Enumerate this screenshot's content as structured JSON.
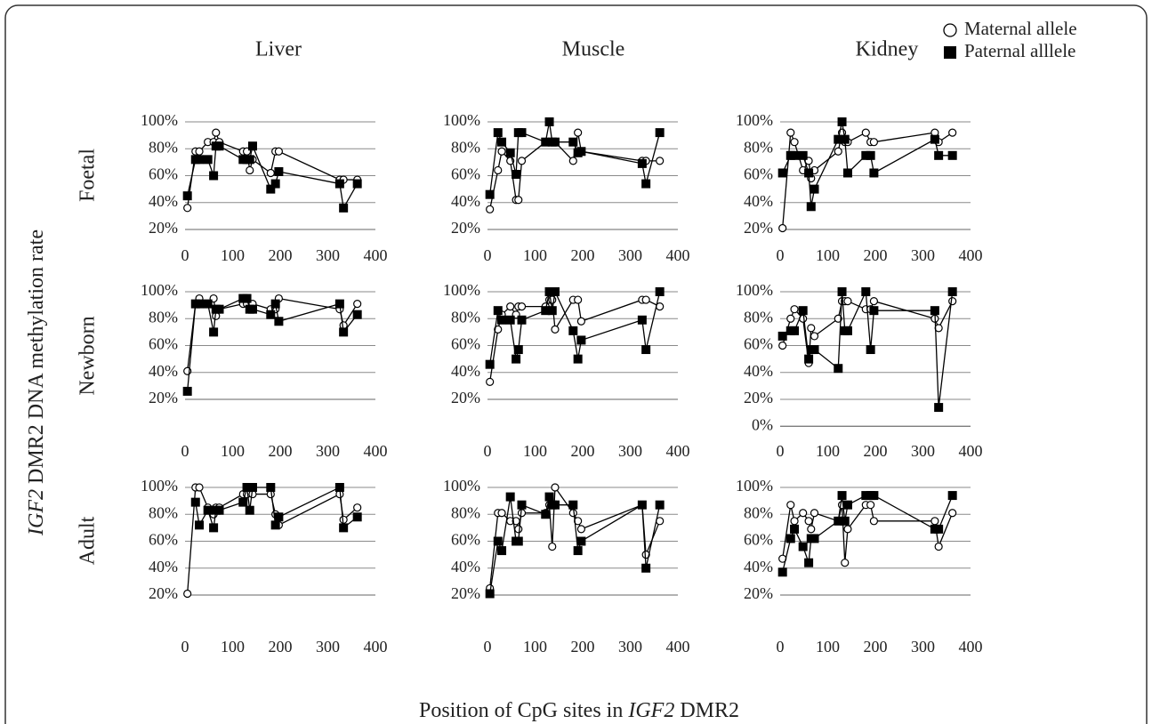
{
  "figure": {
    "column_titles": [
      "Liver",
      "Muscle",
      "Kidney"
    ],
    "row_labels": [
      "Foetal",
      "Newborn",
      "Adult"
    ],
    "y_label": [
      "IGF2",
      " DMR2 DNA methylation rate"
    ],
    "x_label": [
      "Position of CpG sites in ",
      "IGF2",
      " DMR2"
    ]
  },
  "chart_data": [
    {
      "type": "line",
      "x": [
        5,
        22,
        30,
        48,
        60,
        65,
        72,
        122,
        130,
        136,
        142,
        180,
        190,
        197,
        325,
        333,
        362
      ],
      "xlim": [
        0,
        400
      ],
      "xticks": [
        0,
        100,
        200,
        300,
        400
      ],
      "ylim": [
        20,
        100
      ],
      "yticks": [
        {
          "value": 20,
          "label": "20%"
        },
        {
          "value": 40,
          "label": "40%"
        },
        {
          "value": 60,
          "label": "60%"
        },
        {
          "value": 80,
          "label": "80%"
        },
        {
          "value": 100,
          "label": "100%"
        }
      ],
      "grid": true,
      "series": [
        {
          "name": "Maternal allele",
          "color": "#000000",
          "marker": "circle",
          "values": [
            36,
            78,
            78,
            85,
            85,
            92,
            85,
            78,
            78,
            64,
            72,
            62,
            78,
            78,
            57,
            57,
            57
          ]
        },
        {
          "name": "Paternal alllele",
          "color": "#000000",
          "marker": "square",
          "values": [
            45,
            72,
            72,
            72,
            60,
            82,
            82,
            72,
            72,
            72,
            82,
            50,
            54,
            63,
            54,
            36,
            54
          ]
        }
      ]
    },
    {
      "type": "line",
      "x": [
        5,
        22,
        30,
        48,
        60,
        65,
        72,
        122,
        130,
        136,
        142,
        180,
        190,
        197,
        325,
        333,
        362
      ],
      "xlim": [
        0,
        400
      ],
      "xticks": [
        0,
        100,
        200,
        300,
        400
      ],
      "ylim": [
        20,
        100
      ],
      "yticks": [
        {
          "value": 20,
          "label": "20%"
        },
        {
          "value": 40,
          "label": "40%"
        },
        {
          "value": 60,
          "label": "60%"
        },
        {
          "value": 80,
          "label": "80%"
        },
        {
          "value": 100,
          "label": "100%"
        }
      ],
      "grid": true,
      "series": [
        {
          "name": "Maternal allele",
          "color": "#000000",
          "marker": "circle",
          "values": [
            35,
            64,
            78,
            71,
            42,
            42,
            71,
            85,
            85,
            85,
            85,
            71,
            92,
            78,
            71,
            71,
            71
          ]
        },
        {
          "name": "Paternal alllele",
          "color": "#000000",
          "marker": "square",
          "values": [
            46,
            92,
            85,
            77,
            61,
            92,
            92,
            85,
            100,
            85,
            85,
            85,
            77,
            78,
            69,
            54,
            92
          ]
        }
      ]
    },
    {
      "type": "line",
      "x": [
        5,
        22,
        30,
        48,
        60,
        65,
        72,
        122,
        130,
        136,
        142,
        180,
        190,
        197,
        325,
        333,
        362
      ],
      "xlim": [
        0,
        400
      ],
      "xticks": [
        0,
        100,
        200,
        300,
        400
      ],
      "ylim": [
        20,
        100
      ],
      "yticks": [
        {
          "value": 20,
          "label": "20%"
        },
        {
          "value": 40,
          "label": "40%"
        },
        {
          "value": 60,
          "label": "60%"
        },
        {
          "value": 80,
          "label": "80%"
        },
        {
          "value": 100,
          "label": "100%"
        }
      ],
      "grid": true,
      "series": [
        {
          "name": "Maternal allele",
          "color": "#000000",
          "marker": "circle",
          "values": [
            21,
            92,
            85,
            64,
            71,
            58,
            64,
            78,
            92,
            85,
            85,
            92,
            85,
            85,
            92,
            85,
            92
          ]
        },
        {
          "name": "Paternal alllele",
          "color": "#000000",
          "marker": "square",
          "values": [
            62,
            75,
            75,
            75,
            62,
            37,
            50,
            87,
            100,
            87,
            62,
            75,
            75,
            62,
            87,
            75,
            75
          ]
        }
      ]
    },
    {
      "type": "line",
      "x": [
        5,
        22,
        30,
        48,
        60,
        65,
        72,
        122,
        130,
        136,
        142,
        180,
        190,
        197,
        325,
        333,
        362
      ],
      "xlim": [
        0,
        400
      ],
      "xticks": [
        0,
        100,
        200,
        300,
        400
      ],
      "ylim": [
        20,
        100
      ],
      "yticks": [
        {
          "value": 20,
          "label": "20%"
        },
        {
          "value": 40,
          "label": "40%"
        },
        {
          "value": 60,
          "label": "60%"
        },
        {
          "value": 80,
          "label": "80%"
        },
        {
          "value": 100,
          "label": "100%"
        }
      ],
      "grid": true,
      "series": [
        {
          "name": "Maternal allele",
          "color": "#000000",
          "marker": "circle",
          "values": [
            41,
            91,
            95,
            91,
            95,
            82,
            87,
            91,
            91,
            87,
            91,
            87,
            87,
            95,
            87,
            75,
            91
          ]
        },
        {
          "name": "Paternal alllele",
          "color": "#000000",
          "marker": "square",
          "values": [
            26,
            91,
            91,
            91,
            70,
            87,
            87,
            95,
            95,
            87,
            87,
            83,
            91,
            78,
            91,
            70,
            83
          ]
        }
      ]
    },
    {
      "type": "line",
      "x": [
        5,
        22,
        30,
        48,
        60,
        65,
        72,
        122,
        130,
        136,
        142,
        180,
        190,
        197,
        325,
        333,
        362
      ],
      "xlim": [
        0,
        400
      ],
      "xticks": [
        0,
        100,
        200,
        300,
        400
      ],
      "ylim": [
        20,
        100
      ],
      "yticks": [
        {
          "value": 20,
          "label": "20%"
        },
        {
          "value": 40,
          "label": "40%"
        },
        {
          "value": 60,
          "label": "60%"
        },
        {
          "value": 80,
          "label": "80%"
        },
        {
          "value": 100,
          "label": "100%"
        }
      ],
      "grid": true,
      "series": [
        {
          "name": "Maternal allele",
          "color": "#000000",
          "marker": "circle",
          "values": [
            33,
            72,
            83,
            89,
            83,
            89,
            89,
            89,
            94,
            94,
            72,
            94,
            94,
            78,
            94,
            94,
            89
          ]
        },
        {
          "name": "Paternal alllele",
          "color": "#000000",
          "marker": "square",
          "values": [
            46,
            86,
            79,
            79,
            50,
            57,
            79,
            86,
            100,
            86,
            100,
            71,
            50,
            64,
            79,
            57,
            100
          ]
        }
      ]
    },
    {
      "type": "line",
      "x": [
        5,
        22,
        30,
        48,
        60,
        65,
        72,
        122,
        130,
        136,
        142,
        180,
        190,
        197,
        325,
        333,
        362
      ],
      "xlim": [
        0,
        400
      ],
      "xticks": [
        0,
        100,
        200,
        300,
        400
      ],
      "ylim": [
        0,
        100
      ],
      "yticks": [
        {
          "value": 0,
          "label": "0%"
        },
        {
          "value": 20,
          "label": "20%"
        },
        {
          "value": 40,
          "label": "40%"
        },
        {
          "value": 60,
          "label": "60%"
        },
        {
          "value": 80,
          "label": "80%"
        },
        {
          "value": 100,
          "label": "100%"
        }
      ],
      "grid": true,
      "series": [
        {
          "name": "Maternal allele",
          "color": "#000000",
          "marker": "circle",
          "values": [
            60,
            80,
            87,
            80,
            47,
            73,
            67,
            80,
            93,
            93,
            93,
            87,
            87,
            93,
            80,
            73,
            93
          ]
        },
        {
          "name": "Paternal alllele",
          "color": "#000000",
          "marker": "square",
          "values": [
            67,
            71,
            71,
            86,
            50,
            57,
            57,
            43,
            100,
            71,
            71,
            100,
            57,
            86,
            86,
            14,
            100
          ]
        }
      ]
    },
    {
      "type": "line",
      "x": [
        5,
        22,
        30,
        48,
        60,
        65,
        72,
        122,
        130,
        136,
        142,
        180,
        190,
        197,
        325,
        333,
        362
      ],
      "xlim": [
        0,
        400
      ],
      "xticks": [
        0,
        100,
        200,
        300,
        400
      ],
      "ylim": [
        20,
        100
      ],
      "yticks": [
        {
          "value": 20,
          "label": "20%"
        },
        {
          "value": 40,
          "label": "40%"
        },
        {
          "value": 60,
          "label": "60%"
        },
        {
          "value": 80,
          "label": "80%"
        },
        {
          "value": 100,
          "label": "100%"
        }
      ],
      "grid": true,
      "series": [
        {
          "name": "Maternal allele",
          "color": "#000000",
          "marker": "circle",
          "values": [
            21,
            100,
            100,
            85,
            80,
            85,
            85,
            95,
            95,
            100,
            95,
            95,
            80,
            72,
            95,
            76,
            85
          ]
        },
        {
          "name": "Paternal alllele",
          "color": "#000000",
          "marker": "square",
          "values": [
            null,
            89,
            72,
            83,
            70,
            83,
            83,
            89,
            100,
            83,
            100,
            100,
            72,
            78,
            100,
            70,
            78
          ]
        }
      ]
    },
    {
      "type": "line",
      "x": [
        5,
        22,
        30,
        48,
        60,
        65,
        72,
        122,
        130,
        136,
        142,
        180,
        190,
        197,
        325,
        333,
        362
      ],
      "xlim": [
        0,
        400
      ],
      "xticks": [
        0,
        100,
        200,
        300,
        400
      ],
      "ylim": [
        20,
        100
      ],
      "yticks": [
        {
          "value": 20,
          "label": "20%"
        },
        {
          "value": 40,
          "label": "40%"
        },
        {
          "value": 60,
          "label": "60%"
        },
        {
          "value": 80,
          "label": "80%"
        },
        {
          "value": 100,
          "label": "100%"
        }
      ],
      "grid": true,
      "series": [
        {
          "name": "Maternal allele",
          "color": "#000000",
          "marker": "circle",
          "values": [
            25,
            81,
            81,
            75,
            75,
            69,
            81,
            81,
            87,
            56,
            100,
            81,
            75,
            69,
            87,
            50,
            75
          ]
        },
        {
          "name": "Paternal alllele",
          "color": "#000000",
          "marker": "square",
          "values": [
            21,
            60,
            53,
            93,
            60,
            60,
            87,
            80,
            93,
            87,
            87,
            87,
            53,
            60,
            87,
            40,
            87
          ]
        }
      ]
    },
    {
      "type": "line",
      "x": [
        5,
        22,
        30,
        48,
        60,
        65,
        72,
        122,
        130,
        136,
        142,
        180,
        190,
        197,
        325,
        333,
        362
      ],
      "xlim": [
        0,
        400
      ],
      "xticks": [
        0,
        100,
        200,
        300,
        400
      ],
      "ylim": [
        20,
        100
      ],
      "yticks": [
        {
          "value": 20,
          "label": "20%"
        },
        {
          "value": 40,
          "label": "40%"
        },
        {
          "value": 60,
          "label": "60%"
        },
        {
          "value": 80,
          "label": "80%"
        },
        {
          "value": 100,
          "label": "100%"
        }
      ],
      "grid": true,
      "series": [
        {
          "name": "Maternal allele",
          "color": "#000000",
          "marker": "circle",
          "values": [
            47,
            87,
            75,
            81,
            75,
            69,
            81,
            75,
            87,
            44,
            69,
            87,
            87,
            75,
            75,
            56,
            81
          ]
        },
        {
          "name": "Paternal alllele",
          "color": "#000000",
          "marker": "square",
          "values": [
            37,
            62,
            69,
            56,
            44,
            62,
            62,
            75,
            94,
            75,
            87,
            94,
            94,
            94,
            69,
            69,
            94
          ]
        }
      ]
    }
  ]
}
